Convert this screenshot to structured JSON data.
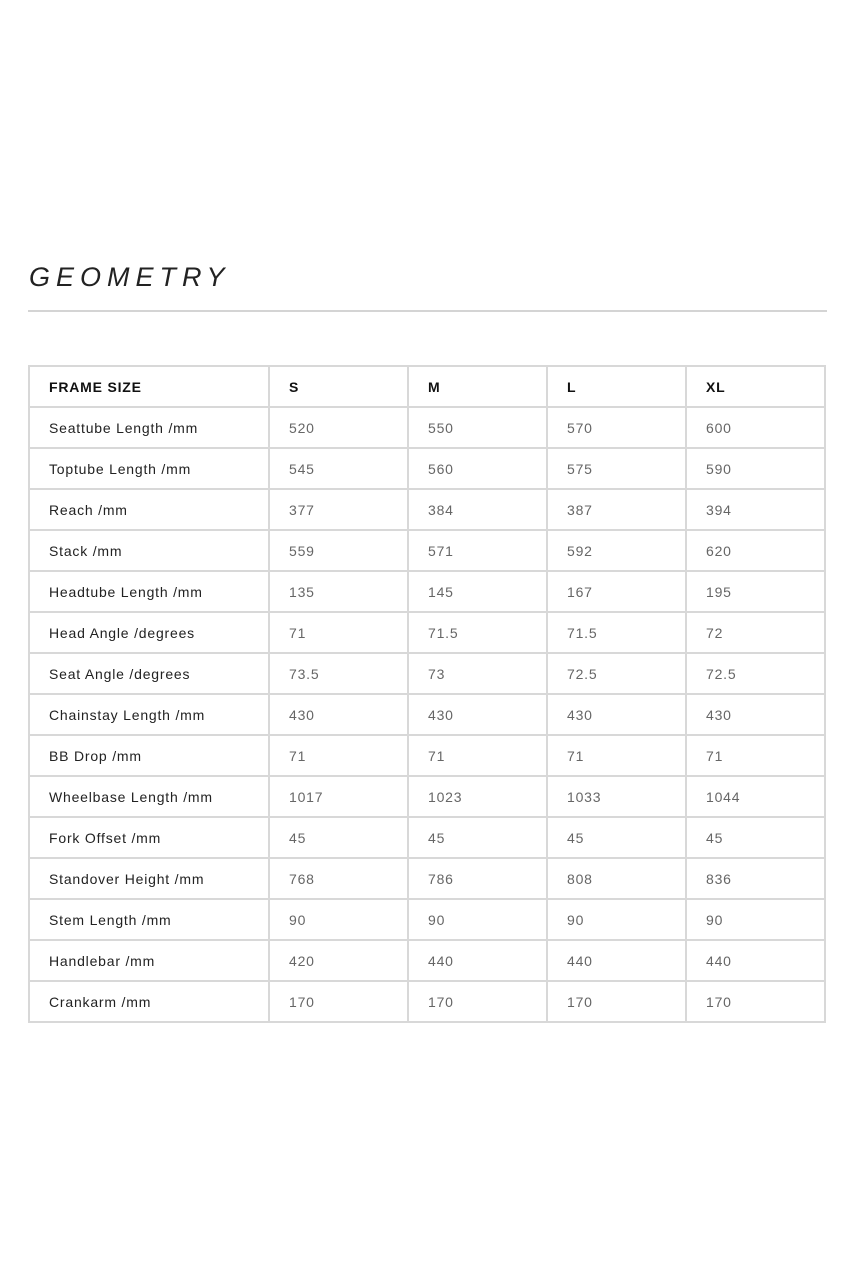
{
  "title": "GEOMETRY",
  "table": {
    "headers": [
      "FRAME SIZE",
      "S",
      "M",
      "L",
      "XL"
    ],
    "rows": [
      [
        "Seattube Length /mm",
        "520",
        "550",
        "570",
        "600"
      ],
      [
        "Toptube Length /mm",
        "545",
        "560",
        "575",
        "590"
      ],
      [
        "Reach /mm",
        "377",
        "384",
        "387",
        "394"
      ],
      [
        "Stack /mm",
        "559",
        "571",
        "592",
        "620"
      ],
      [
        "Headtube Length /mm",
        "135",
        "145",
        "167",
        "195"
      ],
      [
        "Head Angle /degrees",
        "71",
        "71.5",
        "71.5",
        "72"
      ],
      [
        "Seat Angle /degrees",
        "73.5",
        "73",
        "72.5",
        "72.5"
      ],
      [
        "Chainstay Length /mm",
        "430",
        "430",
        "430",
        "430"
      ],
      [
        "BB Drop /mm",
        "71",
        "71",
        "71",
        "71"
      ],
      [
        "Wheelbase Length /mm",
        "1017",
        "1023",
        "1033",
        "1044"
      ],
      [
        "Fork Offset /mm",
        "45",
        "45",
        "45",
        "45"
      ],
      [
        "Standover Height /mm",
        "768",
        "786",
        "808",
        "836"
      ],
      [
        "Stem Length /mm",
        "90",
        "90",
        "90",
        "90"
      ],
      [
        "Handlebar /mm",
        "420",
        "440",
        "440",
        "440"
      ],
      [
        "Crankarm /mm",
        "170",
        "170",
        "170",
        "170"
      ]
    ]
  }
}
